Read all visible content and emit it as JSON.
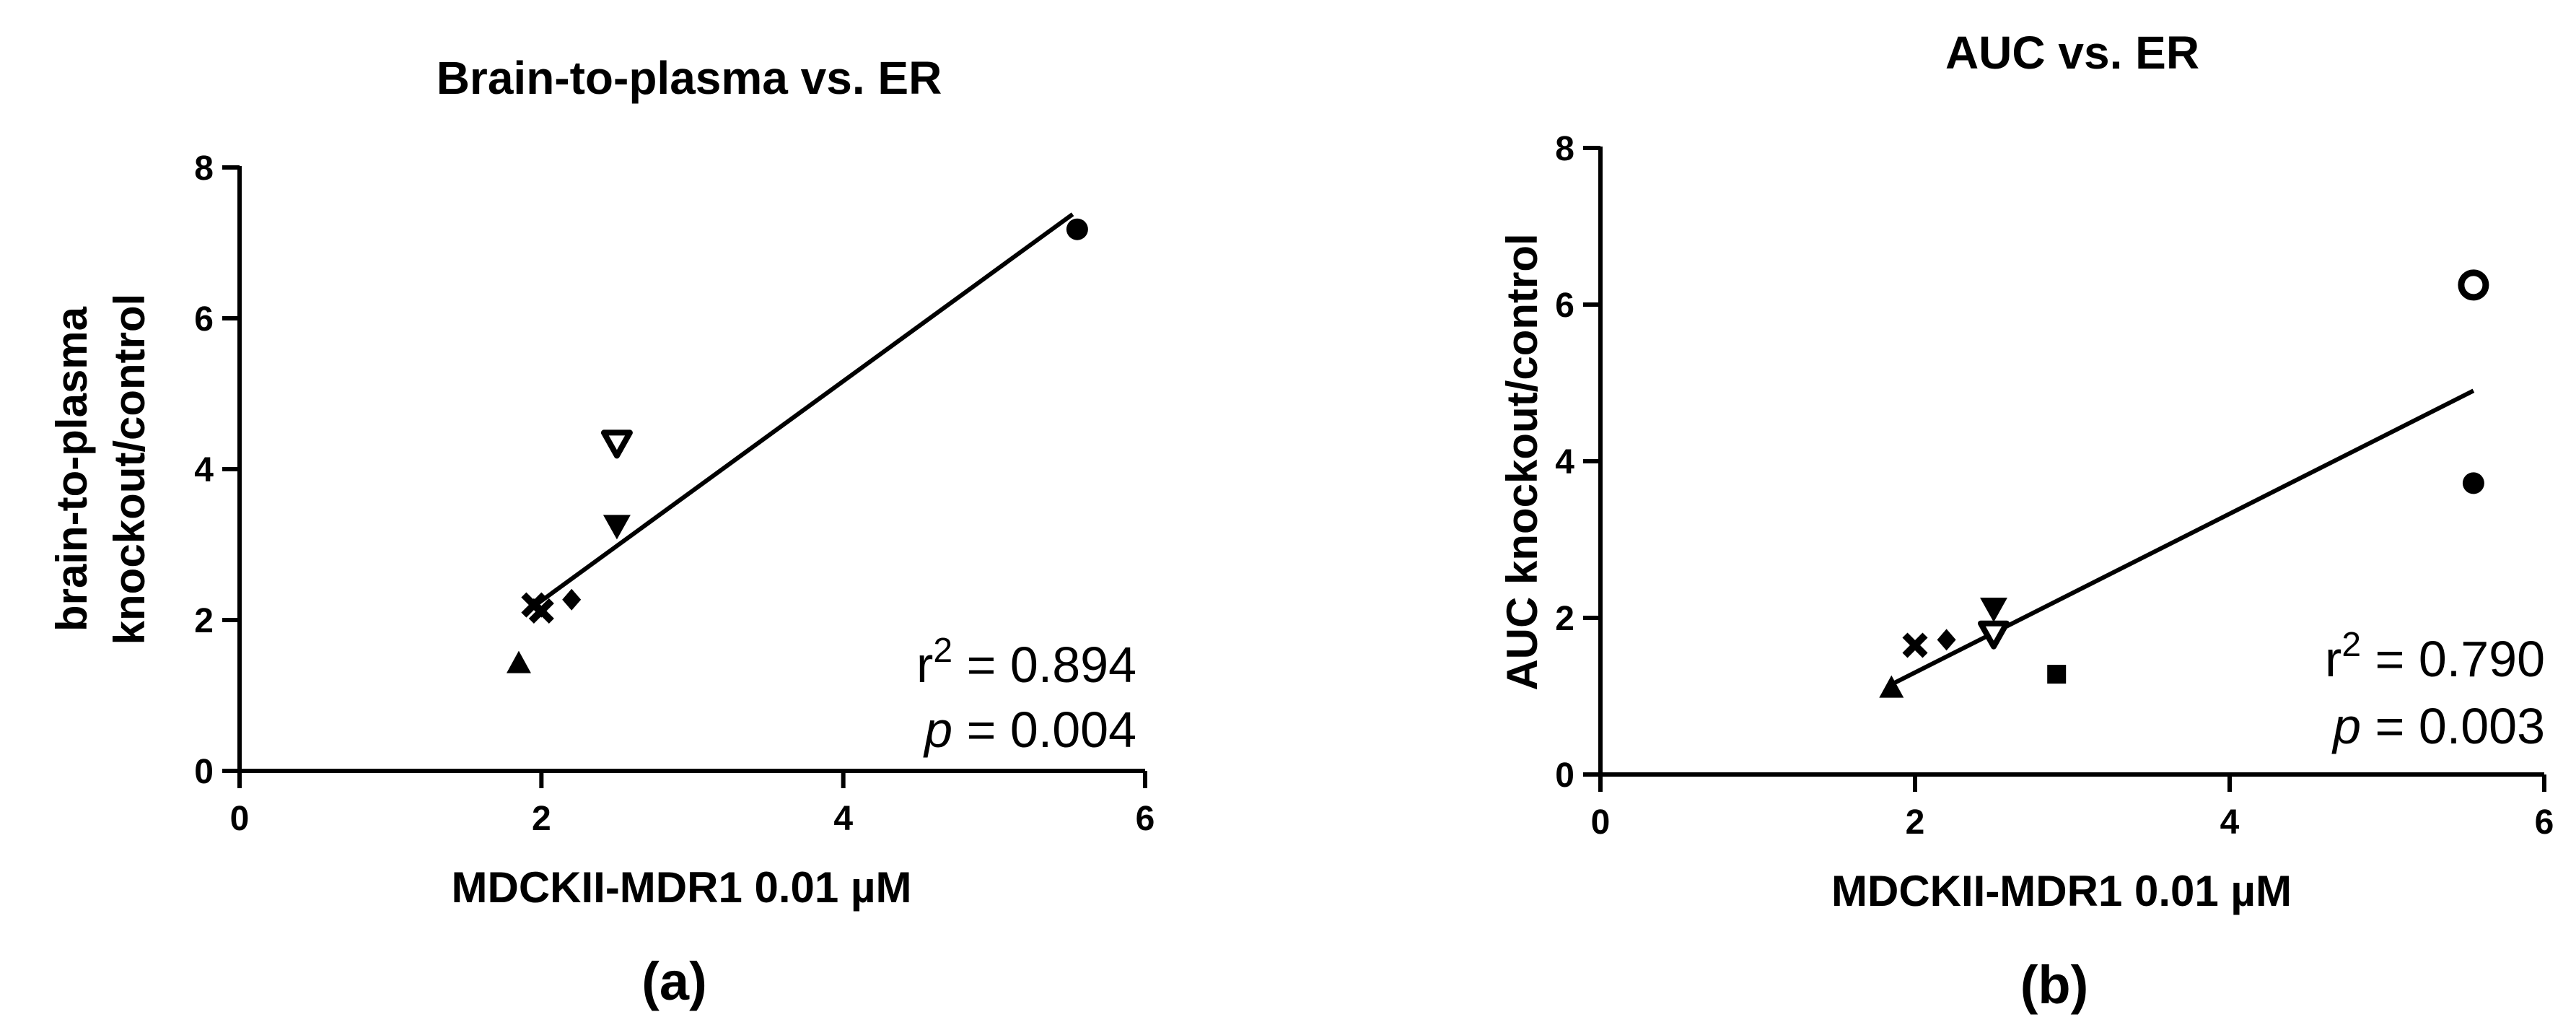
{
  "chart_data": [
    {
      "type": "scatter",
      "title": "Brain-to-plasma vs. ER",
      "xlabel": "MDCKII-MDR1 0.01 µM",
      "ylabel": [
        "brain-to-plasma",
        "knockout/control"
      ],
      "xlim": [
        0,
        6
      ],
      "ylim": [
        0,
        8
      ],
      "xticks": [
        "0",
        "2",
        "4",
        "6"
      ],
      "yticks": [
        "0",
        "2",
        "4",
        "6",
        "8"
      ],
      "grid": false,
      "points": [
        {
          "x": 1.85,
          "y": 1.42,
          "marker": "triangle-up"
        },
        {
          "x": 1.95,
          "y": 2.2,
          "marker": "cross"
        },
        {
          "x": 2.0,
          "y": 2.12,
          "marker": "cross"
        },
        {
          "x": 2.2,
          "y": 2.27,
          "marker": "diamond"
        },
        {
          "x": 2.5,
          "y": 3.25,
          "marker": "triangle-down"
        },
        {
          "x": 2.5,
          "y": 4.35,
          "marker": "triangle-down-open"
        },
        {
          "x": 5.55,
          "y": 7.18,
          "marker": "circle"
        }
      ],
      "fit_line": {
        "x": [
          1.88,
          5.52
        ],
        "y": [
          2.08,
          7.38
        ]
      },
      "stats": {
        "r2_prefix": "r",
        "r2_sup": "2",
        "r2_value": " = 0.894",
        "p_prefix": "p",
        "p_value": " = 0.004"
      },
      "panel_label": "(a)"
    },
    {
      "type": "scatter",
      "title": "AUC vs. ER",
      "xlabel": "MDCKII-MDR1 0.01 µM",
      "ylabel": [
        "AUC knockout/control"
      ],
      "xlim": [
        0,
        6
      ],
      "ylim": [
        0,
        8
      ],
      "xticks": [
        "0",
        "2",
        "4",
        "6"
      ],
      "yticks": [
        "0",
        "2",
        "4",
        "6",
        "8"
      ],
      "grid": false,
      "points": [
        {
          "x": 1.85,
          "y": 1.1,
          "marker": "triangle-up"
        },
        {
          "x": 2.0,
          "y": 1.65,
          "marker": "cross"
        },
        {
          "x": 2.2,
          "y": 1.72,
          "marker": "diamond"
        },
        {
          "x": 2.5,
          "y": 2.12,
          "marker": "triangle-down"
        },
        {
          "x": 2.5,
          "y": 1.8,
          "marker": "triangle-down-open"
        },
        {
          "x": 2.9,
          "y": 1.28,
          "marker": "square"
        },
        {
          "x": 5.55,
          "y": 3.72,
          "marker": "circle"
        },
        {
          "x": 5.55,
          "y": 6.25,
          "marker": "circle-open"
        }
      ],
      "fit_line": {
        "x": [
          1.85,
          5.55
        ],
        "y": [
          1.15,
          4.9
        ]
      },
      "stats": {
        "r2_prefix": "r",
        "r2_sup": "2",
        "r2_value": " = 0.790",
        "p_prefix": "p",
        "p_value": " = 0.003"
      },
      "panel_label": "(b)"
    }
  ]
}
